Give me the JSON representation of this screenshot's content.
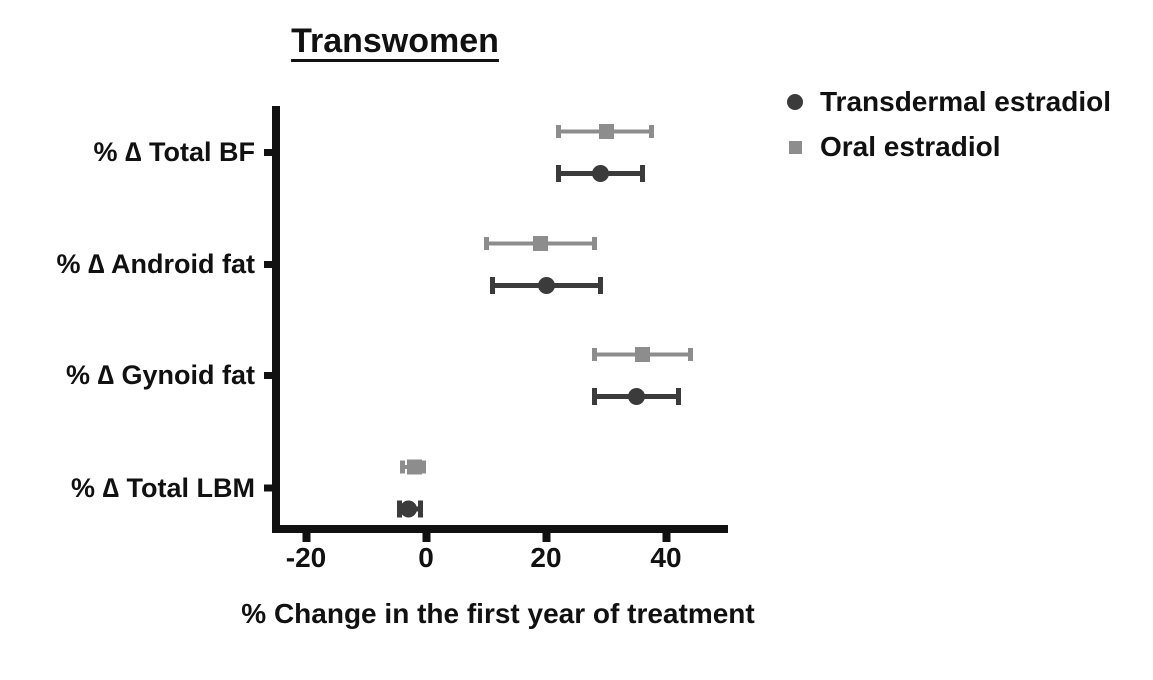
{
  "chart_data": {
    "type": "scatter",
    "subtype": "forest-plot-horizontal-error-bars",
    "title": "Transwomen",
    "xlabel": "% Change in the first year of treatment",
    "ylabel": "",
    "categories": [
      "% ∆ Total BF",
      "% ∆ Android fat",
      "% ∆ Gynoid fat",
      "% ∆ Total LBM"
    ],
    "x_ticks": [
      -20,
      0,
      20,
      40
    ],
    "x_tick_labels": [
      "-20",
      "0",
      "20",
      "40"
    ],
    "xlim": [
      -26,
      50
    ],
    "grid": false,
    "legend_position": "top-right-outside",
    "series": [
      {
        "name": "Transdermal estradiol",
        "marker": "circle",
        "color": "#3b3b3b",
        "values": [
          29,
          20,
          35,
          -3
        ],
        "ci_low": [
          22,
          11,
          28,
          -4.5
        ],
        "ci_high": [
          36,
          29,
          42,
          -1
        ]
      },
      {
        "name": "Oral estradiol",
        "marker": "square",
        "color": "#8d8d8d",
        "values": [
          30,
          19,
          36,
          -2
        ],
        "ci_low": [
          22,
          10,
          28,
          -4
        ],
        "ci_high": [
          37.5,
          28,
          44,
          -0.5
        ]
      }
    ]
  },
  "colors": {
    "axis": "#111111",
    "text": "#111111",
    "background": "#ffffff",
    "series_transdermal": "#3b3b3b",
    "series_oral": "#8d8d8d"
  }
}
